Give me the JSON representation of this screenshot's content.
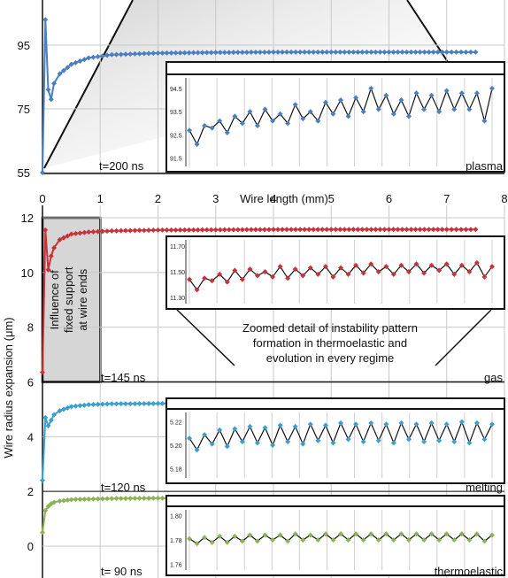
{
  "chart_data": {
    "type": "line",
    "xlabel": "Wire length (mm)",
    "ylabel": "Wire radius expansion (μm)",
    "x_ticks": [
      "0",
      "1",
      "2",
      "3",
      "4",
      "5",
      "6",
      "7",
      "8"
    ],
    "top_panel": {
      "y_ticks": [
        "55",
        "75",
        "95"
      ],
      "ylim": [
        55,
        105
      ],
      "regime": "plasma",
      "time_label": "t=200 ns",
      "color": "#4a7fc1",
      "x": [
        0,
        0.05,
        0.1,
        0.15,
        0.2,
        0.3,
        0.5,
        0.8,
        1.2,
        2,
        3,
        4,
        5,
        6,
        7,
        7.5
      ],
      "y": [
        55,
        103,
        81,
        78,
        83,
        86,
        89,
        91,
        92,
        92.5,
        92.7,
        92.8,
        92.8,
        92.8,
        92.8,
        92.8
      ],
      "inset": {
        "y_ticks": [
          "91.5",
          "92.5",
          "93.5",
          "94.5"
        ],
        "ylim": [
          91.3,
          94.8
        ],
        "values": [
          92.7,
          92.1,
          92.9,
          92.8,
          93.1,
          92.6,
          93.3,
          93.0,
          93.5,
          92.9,
          93.6,
          93.1,
          93.4,
          93.0,
          93.8,
          93.2,
          93.5,
          93.1,
          93.9,
          93.4,
          94.0,
          93.3,
          94.1,
          93.5,
          94.5,
          93.6,
          94.2,
          93.4,
          94.0,
          93.3,
          94.3,
          93.6,
          94.2,
          93.5,
          94.4,
          93.6,
          94.3,
          93.6,
          94.3,
          93.1,
          94.5
        ]
      }
    },
    "panels": [
      {
        "regime": "gas",
        "time_label": "t=145 ns",
        "color": "#c8333a",
        "y_ticks": [
          "6",
          "8",
          "10",
          "12"
        ],
        "ylim": [
          6,
          12
        ],
        "x": [
          0,
          0.05,
          0.1,
          0.15,
          0.2,
          0.3,
          0.5,
          0.8,
          1.2,
          2,
          3,
          4,
          5,
          6,
          7,
          7.5
        ],
        "y": [
          6.35,
          11.55,
          10.1,
          10.6,
          10.9,
          11.2,
          11.4,
          11.48,
          11.52,
          11.55,
          11.56,
          11.57,
          11.57,
          11.57,
          11.57,
          11.57
        ],
        "inset": {
          "y_ticks": [
            "11.30",
            "11.50",
            "11.70"
          ],
          "ylim": [
            11.28,
            11.72
          ],
          "values": [
            11.44,
            11.36,
            11.45,
            11.43,
            11.48,
            11.42,
            11.51,
            11.44,
            11.52,
            11.47,
            11.5,
            11.46,
            11.54,
            11.45,
            11.52,
            11.47,
            11.53,
            11.48,
            11.54,
            11.46,
            11.53,
            11.48,
            11.55,
            11.49,
            11.56,
            11.5,
            11.54,
            11.48,
            11.55,
            11.5,
            11.56,
            11.49,
            11.55,
            11.51,
            11.56,
            11.48,
            11.55,
            11.5,
            11.57,
            11.46,
            11.54
          ]
        }
      },
      {
        "regime": "melting",
        "time_label": "t=120 ns",
        "color": "#3b9fd1",
        "y_ticks": [
          "4",
          "2"
        ],
        "ylim": [
          2,
          6
        ],
        "x": [
          0,
          0.05,
          0.1,
          0.15,
          0.2,
          0.3,
          0.5,
          0.8,
          1.2,
          2,
          3,
          4,
          5,
          6,
          7,
          7.5
        ],
        "y": [
          2.4,
          4.7,
          4.4,
          4.6,
          4.8,
          4.95,
          5.1,
          5.17,
          5.2,
          5.21,
          5.21,
          5.21,
          5.21,
          5.21,
          5.21,
          5.21
        ],
        "inset": {
          "y_ticks": [
            "5.18",
            "5.20",
            "5.22"
          ],
          "ylim": [
            5.175,
            5.225
          ],
          "values": [
            5.206,
            5.196,
            5.209,
            5.201,
            5.213,
            5.199,
            5.214,
            5.203,
            5.216,
            5.202,
            5.215,
            5.2,
            5.217,
            5.203,
            5.216,
            5.201,
            5.218,
            5.204,
            5.217,
            5.202,
            5.219,
            5.205,
            5.218,
            5.203,
            5.219,
            5.204,
            5.218,
            5.202,
            5.219,
            5.205,
            5.218,
            5.203,
            5.219,
            5.204,
            5.218,
            5.203,
            5.22,
            5.202,
            5.219,
            5.205,
            5.218
          ]
        }
      },
      {
        "regime": "thermoelastic",
        "time_label": "t= 90 ns",
        "color": "#8db354",
        "y_ticks": [
          "0"
        ],
        "ylim": [
          0,
          2
        ],
        "x": [
          0,
          0.05,
          0.1,
          0.15,
          0.2,
          0.3,
          0.5,
          0.8,
          1.2,
          2,
          3,
          4,
          5,
          6,
          7,
          7.5
        ],
        "y": [
          0.5,
          1.3,
          1.45,
          1.55,
          1.6,
          1.65,
          1.7,
          1.72,
          1.74,
          1.75,
          1.75,
          1.75,
          1.75,
          1.75,
          1.75,
          1.75
        ],
        "inset": {
          "y_ticks": [
            "1.76",
            "1.78",
            "1.80"
          ],
          "ylim": [
            1.758,
            1.802
          ],
          "values": [
            1.781,
            1.777,
            1.782,
            1.778,
            1.783,
            1.778,
            1.783,
            1.779,
            1.784,
            1.779,
            1.784,
            1.78,
            1.784,
            1.779,
            1.785,
            1.78,
            1.784,
            1.78,
            1.785,
            1.78,
            1.785,
            1.78,
            1.785,
            1.78,
            1.785,
            1.78,
            1.785,
            1.78,
            1.785,
            1.78,
            1.785,
            1.78,
            1.785,
            1.78,
            1.785,
            1.78,
            1.785,
            1.78,
            1.785,
            1.779,
            1.784
          ]
        }
      }
    ],
    "annotations": {
      "fixed_support": "Influence of fixed support at wire ends",
      "zoom_caption": "Zoomed detail of instability pattern formation in thermoelastic and evolution in every regime"
    }
  }
}
